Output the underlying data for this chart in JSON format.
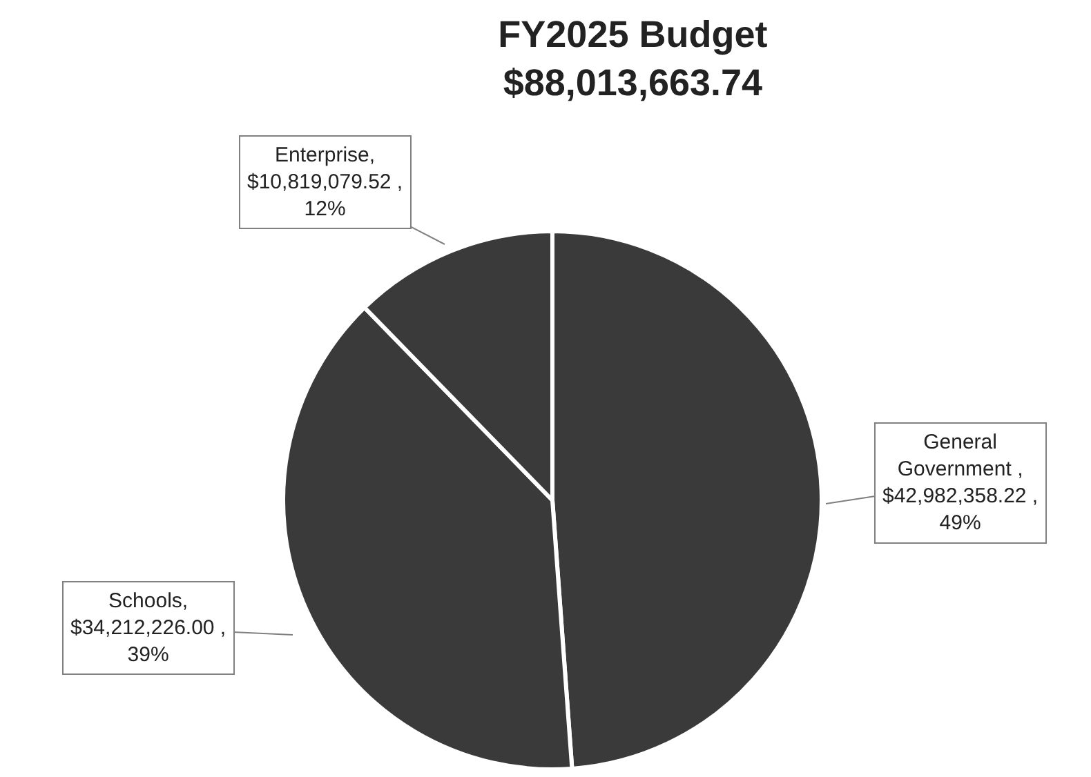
{
  "chart_data": {
    "type": "pie",
    "title": "FY2025 Budget\n$88,013,663.74",
    "categories": [
      "General Government",
      "Schools",
      "Enterprise"
    ],
    "values": [
      42982358.22,
      34212226.0,
      10819079.52
    ],
    "value_labels": [
      " , $42,982,358.22 , 49%",
      ", $34,212,226.00 , 39%",
      ", $10,819,079.52 , 12%"
    ],
    "colors": [
      "#3a3a3a",
      "#3a3a3a",
      "#3a3a3a"
    ],
    "legend": false
  }
}
